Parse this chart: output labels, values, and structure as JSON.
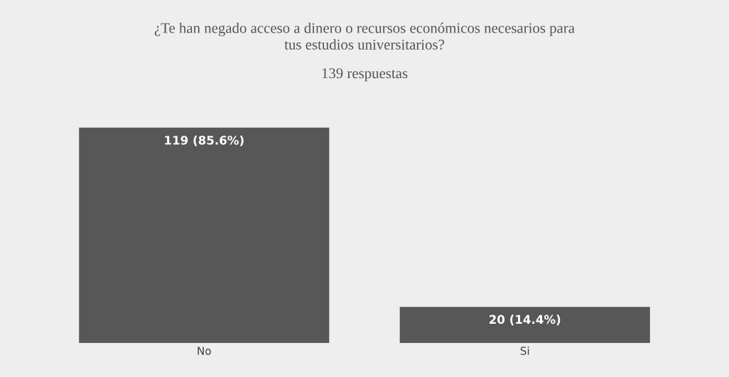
{
  "chart_data": {
    "type": "bar",
    "title": "¿Te han negado acceso a dinero o recursos económicos necesarios para\ntus estudios universitarios?",
    "subtitle": "139 respuestas",
    "categories": [
      "No",
      "Si"
    ],
    "values": [
      119,
      20
    ],
    "value_labels": [
      "119 (85.6%)",
      "20 (14.4%)"
    ],
    "color": "#575757",
    "grid": false,
    "legend": false
  }
}
